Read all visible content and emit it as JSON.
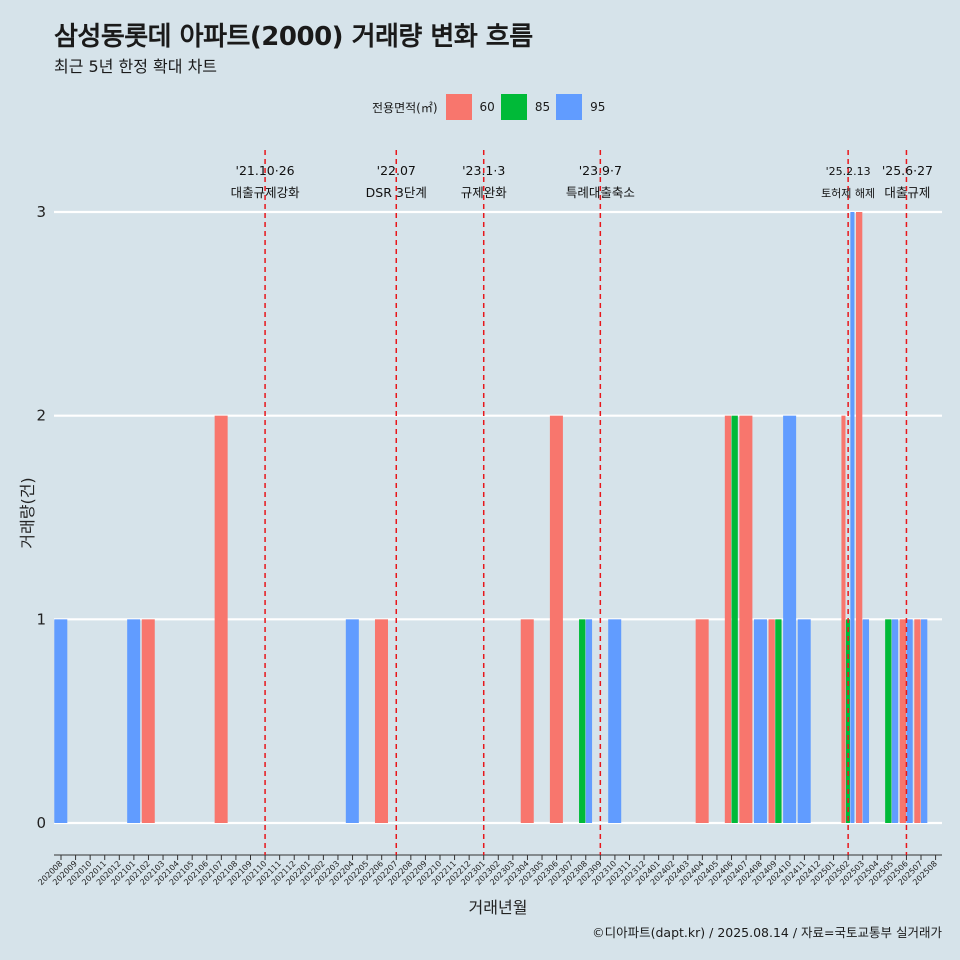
{
  "title": "삼성동롯데 아파트(2000) 거래량 변화 흐름",
  "subtitle": "최근 5년 한정 확대 차트",
  "caption": "©디아파트(dapt.kr) / 2025.08.14 / 자료=국토교통부 실거래가",
  "legend": {
    "title": "전용면적(㎡)",
    "items": [
      {
        "label": "60",
        "color": "#f8766d"
      },
      {
        "label": "85",
        "color": "#00ba38"
      },
      {
        "label": "95",
        "color": "#619cff"
      }
    ]
  },
  "chart_data": {
    "type": "bar",
    "xlabel": "거래년월",
    "ylabel": "거래량(건)",
    "ylim": [
      0,
      3
    ],
    "yticks": [
      0,
      1,
      2,
      3
    ],
    "grid": true,
    "legend_position": "top",
    "categories": [
      "202008",
      "202009",
      "202010",
      "202011",
      "202012",
      "202101",
      "202102",
      "202103",
      "202104",
      "202105",
      "202106",
      "202107",
      "202108",
      "202109",
      "202110",
      "202111",
      "202112",
      "202201",
      "202202",
      "202203",
      "202204",
      "202205",
      "202206",
      "202207",
      "202208",
      "202209",
      "202210",
      "202211",
      "202212",
      "202301",
      "202302",
      "202303",
      "202304",
      "202305",
      "202306",
      "202307",
      "202308",
      "202309",
      "202310",
      "202311",
      "202312",
      "202401",
      "202402",
      "202403",
      "202404",
      "202405",
      "202406",
      "202407",
      "202408",
      "202409",
      "202410",
      "202411",
      "202412",
      "202501",
      "202502",
      "202503",
      "202504",
      "202505",
      "202506",
      "202507",
      "202508"
    ],
    "series": [
      {
        "name": "60",
        "color": "#f8766d",
        "values": {
          "202102": 1,
          "202107": 2,
          "202206": 1,
          "202304": 1,
          "202306": 2,
          "202404": 1,
          "202406": 2,
          "202407": 2,
          "202409": 1,
          "202502": 2,
          "202503": 3,
          "202506": 1,
          "202507": 1
        }
      },
      {
        "name": "85",
        "color": "#00ba38",
        "values": {
          "202308": 1,
          "202406": 2,
          "202409": 1,
          "202502": 1,
          "202505": 1
        }
      },
      {
        "name": "95",
        "color": "#619cff",
        "values": {
          "202008": 1,
          "202101": 1,
          "202204": 1,
          "202308": 1,
          "202310": 1,
          "202408": 1,
          "202410": 2,
          "202411": 1,
          "202502": 3,
          "202503": 1,
          "202505": 1,
          "202506": 1,
          "202507": 1
        }
      }
    ],
    "annotations": [
      {
        "x": "202110",
        "date": "'21.10·26",
        "label": "대출규제강화"
      },
      {
        "x": "202207",
        "date": "'22.07",
        "label": "DSR 3단계"
      },
      {
        "x": "202301",
        "date": "'23.1·3",
        "label": "규제완화"
      },
      {
        "x": "202309",
        "date": "'23.9·7",
        "label": "특례대출축소"
      },
      {
        "x": "202502",
        "date": "'25.2.13",
        "label": "토허제 해제"
      },
      {
        "x": "202506",
        "date": "'25.6·27",
        "label": "대출규제"
      }
    ]
  }
}
